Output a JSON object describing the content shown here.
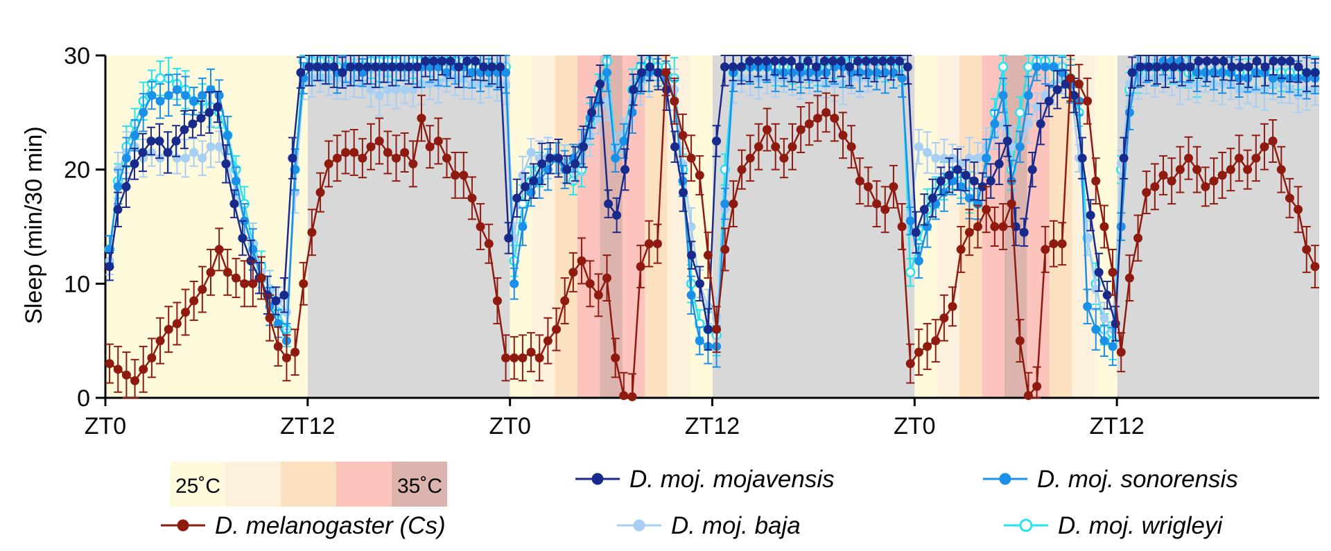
{
  "chart_data": {
    "type": "line",
    "title": "",
    "ylabel": "Sleep (min/30 min)",
    "xlabel": "",
    "ylim": [
      0,
      30
    ],
    "yticks": [
      0,
      10,
      20,
      30
    ],
    "xlim": [
      0,
      72
    ],
    "xticks": [
      {
        "x": 0,
        "label": "ZT0"
      },
      {
        "x": 12,
        "label": "ZT12"
      },
      {
        "x": 24,
        "label": "ZT0"
      },
      {
        "x": 36,
        "label": "ZT12"
      },
      {
        "x": 48,
        "label": "ZT0"
      },
      {
        "x": 60,
        "label": "ZT12"
      }
    ],
    "background": {
      "dark_periods": [
        [
          12,
          24
        ],
        [
          36,
          48
        ],
        [
          60,
          72
        ]
      ],
      "dark_color": "#d8d8d8",
      "day1_light_color": "#fffadc",
      "temperature_ramps": [
        {
          "start": 24,
          "end": 36,
          "steps": [
            1,
            2,
            3,
            4,
            5,
            4,
            3,
            2,
            1
          ]
        },
        {
          "start": 48,
          "end": 60,
          "steps": [
            1,
            2,
            3,
            4,
            5,
            4,
            3,
            2,
            1
          ]
        }
      ],
      "temperature_colors": [
        "#fffadc",
        "#fdf0dc",
        "#fce1c1",
        "#fcc4bc",
        "#ddb3ad"
      ]
    },
    "temperature_legend": {
      "low_label": "25˚C",
      "high_label": "35˚C",
      "colors": [
        "#fffadc",
        "#fdf0dc",
        "#fce1c1",
        "#fcc4bc",
        "#ddb3ad"
      ]
    },
    "series": [
      {
        "name": "D. moj. mojavensis",
        "color": "#182a8c",
        "marker": "filled",
        "values": [
          11.5,
          16.5,
          18.5,
          20.5,
          21.5,
          22.5,
          22.5,
          21.5,
          22.5,
          23.5,
          24,
          24.5,
          25,
          25.5,
          20.5,
          17,
          14,
          12,
          10.5,
          9,
          8.5,
          9,
          21,
          28.5,
          29,
          29,
          29,
          29,
          28.5,
          29,
          29,
          29,
          29,
          29,
          29,
          29,
          29,
          29,
          29.5,
          29.5,
          29.5,
          29.5,
          29,
          29.5,
          29.5,
          29,
          29,
          29,
          14,
          17.5,
          18.5,
          19,
          20.5,
          21,
          21,
          20,
          20.5,
          22,
          25,
          27.5,
          17,
          16,
          20,
          27,
          28.5,
          29,
          28.5,
          27,
          22,
          18,
          12.5,
          10,
          6,
          22.5,
          29,
          29,
          29,
          29.5,
          29.5,
          29.5,
          29.5,
          29.5,
          29.5,
          29,
          29.5,
          29,
          29.5,
          29.5,
          29.5,
          29,
          29.5,
          29.5,
          29.5,
          29.5,
          29.5,
          29.5,
          29,
          14.5,
          16.5,
          17.5,
          19,
          19.5,
          20,
          19.5,
          19,
          18.5,
          19,
          20.5,
          22.5,
          15,
          14.5,
          20,
          24,
          26,
          27,
          27.5,
          26.5,
          21,
          16,
          11,
          9,
          6.5,
          21,
          28.5,
          29,
          29,
          29,
          29,
          29,
          29,
          29,
          29.5,
          29.5,
          29.5,
          29.5,
          29,
          29,
          29,
          29.5,
          29,
          29.5,
          29.5,
          29.5,
          29,
          28.5,
          28.5
        ]
      },
      {
        "name": "D. moj. sonorensis",
        "color": "#1a90e8",
        "marker": "filled",
        "values": [
          13,
          18.5,
          21,
          23,
          25,
          26.5,
          26,
          26.5,
          27,
          26.5,
          26,
          26.5,
          27,
          26.5,
          23,
          19,
          15.5,
          13,
          10.5,
          8,
          6.5,
          5,
          20,
          28,
          29,
          29,
          29,
          28.5,
          29,
          29,
          28.5,
          29,
          29,
          29,
          29,
          29,
          29,
          29,
          29,
          29,
          28.5,
          29,
          29,
          28.5,
          28.5,
          28.5,
          28.5,
          28.5,
          10,
          15,
          18,
          19,
          20,
          21,
          20,
          21,
          22,
          24.5,
          26,
          28.5,
          21,
          22.5,
          25,
          28,
          28.5,
          28.5,
          28,
          26,
          19,
          9,
          5,
          4.5,
          4.5,
          17,
          28.5,
          29,
          29,
          29,
          29,
          28.5,
          28.5,
          28.5,
          28.5,
          28.5,
          28.5,
          28.5,
          29,
          29,
          28.5,
          28.5,
          28.5,
          28.5,
          28.5,
          28.5,
          28,
          15.5,
          12,
          15,
          17,
          18,
          19,
          18.5,
          17.5,
          17,
          21,
          24,
          26.5,
          19,
          22,
          26.5,
          29,
          29,
          29,
          28.5,
          27.5,
          26,
          8,
          6,
          5,
          4.5,
          15,
          25,
          29,
          29,
          29,
          29.5,
          29.5,
          29.5,
          29,
          28.5,
          28.5,
          28.5,
          28.5,
          28.5,
          28,
          28,
          28.5,
          28.5,
          28,
          28,
          28,
          28,
          28,
          28
        ]
      },
      {
        "name": "D. moj. baja",
        "color": "#a7cef3",
        "marker": "filled",
        "values": [
          12,
          20,
          21.5,
          22,
          21,
          21.5,
          21,
          21.5,
          21,
          21,
          21.5,
          21,
          22,
          22,
          20.5,
          18,
          15.5,
          13.5,
          11,
          9.5,
          8.5,
          7.5,
          18,
          27.5,
          28,
          28,
          28,
          28,
          27.5,
          28,
          27.5,
          27,
          26.5,
          27,
          27,
          27,
          27,
          27.5,
          27.5,
          27.5,
          28,
          28,
          28,
          27.5,
          27.5,
          27.5,
          27.5,
          27.5,
          14,
          19.5,
          21.5,
          21,
          21,
          21,
          20.5,
          20,
          21,
          23,
          24.5,
          26,
          22,
          23,
          26,
          27,
          28,
          28.5,
          28,
          27,
          20.5,
          15,
          10,
          8,
          7,
          16.5,
          27.5,
          28,
          28,
          28,
          28,
          28,
          28,
          28,
          28,
          28,
          28,
          27.5,
          27.5,
          27.5,
          28,
          28,
          28,
          28.5,
          28.5,
          28.5,
          28,
          16,
          22,
          21.5,
          21,
          21,
          21,
          20.5,
          21,
          21,
          22,
          23,
          24,
          22,
          22,
          24,
          25.5,
          26.5,
          27.5,
          28,
          27.5,
          21,
          14,
          9.5,
          7,
          6,
          20.5,
          27.5,
          28,
          28,
          28,
          28,
          28,
          27.5,
          27.5,
          27.5,
          28,
          27.5,
          27.5,
          27.5,
          27,
          27,
          27,
          27,
          27.5,
          27.5,
          27,
          26.5,
          27,
          27
        ]
      },
      {
        "name": "D. moj. wrigleyi",
        "color": "#26e3ee",
        "marker": "open",
        "values": [
          13,
          19,
          22,
          24,
          26,
          27.5,
          28,
          28,
          27.5,
          27,
          26,
          26,
          25.5,
          25,
          23,
          20,
          17,
          13.5,
          11.5,
          9.5,
          7.5,
          6,
          20,
          29.5,
          29.5,
          29.5,
          29.5,
          29,
          29,
          29,
          29,
          29.5,
          29.5,
          29.5,
          29.5,
          29,
          29.5,
          29.5,
          29.5,
          29.5,
          29.5,
          29.5,
          29.5,
          29,
          29,
          29,
          29,
          29,
          12,
          17,
          19,
          20,
          21,
          21,
          20.5,
          19,
          20,
          24,
          27,
          29.5,
          22,
          23,
          27,
          29,
          29.5,
          29,
          29,
          28,
          20,
          10,
          6.5,
          6,
          5.5,
          20,
          28.5,
          29,
          29,
          29,
          29,
          29,
          29,
          29,
          29,
          29,
          29,
          29.5,
          29.5,
          29.5,
          29.5,
          29.5,
          29.5,
          29.5,
          29.5,
          29.5,
          29,
          11,
          13.5,
          16.5,
          18,
          19,
          19.5,
          19,
          18,
          17,
          21,
          25,
          29,
          20,
          25,
          29,
          29.5,
          29.5,
          29,
          29,
          28,
          25,
          14,
          10,
          6,
          5,
          20,
          27,
          28.5,
          29,
          29,
          29,
          29,
          29,
          28.5,
          28,
          28.5,
          28.5,
          28.5,
          28.5,
          28.5,
          28.5,
          28.5,
          28.5,
          28.5,
          28.5,
          28.5,
          28.5,
          28.5,
          28.5
        ]
      },
      {
        "name": "D. melanogaster (Cs)",
        "color": "#8e1a10",
        "marker": "filled",
        "values": [
          3,
          2.5,
          2,
          1.5,
          2.5,
          3.5,
          5,
          6,
          6.5,
          7.5,
          8.5,
          9.5,
          11,
          13,
          11,
          10.5,
          10,
          10,
          10.5,
          7,
          4.5,
          3.5,
          4,
          10,
          14.5,
          18,
          20.5,
          21,
          21.5,
          21.5,
          21,
          22,
          22.5,
          21.5,
          21,
          21.5,
          20.5,
          24.5,
          22,
          22.5,
          21,
          19.5,
          19.5,
          17.5,
          15,
          13.5,
          8.5,
          3.5,
          3.5,
          3.5,
          4,
          3.5,
          5,
          6,
          8.5,
          11,
          12,
          10,
          9,
          10.5,
          3.5,
          0.2,
          0.1,
          11.5,
          13.5,
          13.5,
          28.5,
          26,
          23,
          21,
          19.5,
          12.5,
          6,
          13,
          17,
          20,
          21,
          22,
          23.5,
          22,
          21,
          22,
          23.5,
          24,
          24.5,
          25,
          24.5,
          23,
          22,
          19,
          18.5,
          17,
          16.5,
          18.5,
          15,
          3,
          4,
          4.5,
          5,
          7,
          8,
          13,
          14.5,
          15,
          16.5,
          15,
          15,
          17,
          5,
          0.2,
          1,
          13,
          13.5,
          13.5,
          28,
          27.5,
          26,
          19,
          15,
          11,
          4,
          10.5,
          14,
          18,
          18.5,
          19.5,
          19,
          20,
          21,
          20,
          18.5,
          19,
          19.5,
          20,
          21,
          20,
          21,
          22,
          22.5,
          20,
          17.5,
          16.5,
          13,
          11.5
        ]
      }
    ],
    "legend": [
      {
        "name": "D. moj. mojavensis",
        "color": "#182a8c",
        "marker": "filled"
      },
      {
        "name": "D. moj. sonorensis",
        "color": "#1a90e8",
        "marker": "filled"
      },
      {
        "name": "D. melanogaster (Cs)",
        "color": "#8e1a10",
        "marker": "filled"
      },
      {
        "name": "D. moj. baja",
        "color": "#a7cef3",
        "marker": "filled"
      },
      {
        "name": "D. moj. wrigleyi",
        "color": "#26e3ee",
        "marker": "open"
      }
    ]
  }
}
